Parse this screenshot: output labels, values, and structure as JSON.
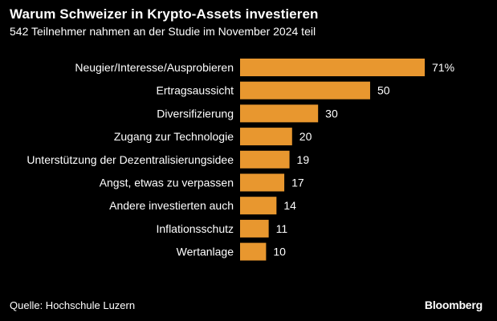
{
  "header": {
    "title": "Warum Schweizer in Krypto-Assets investieren",
    "subtitle": "542 Teilnehmer nahmen an der Studie im November 2024 teil"
  },
  "footer": {
    "source": "Quelle: Hochschule Luzern",
    "brand": "Bloomberg"
  },
  "colors": {
    "background": "#000000",
    "bar": "#e8972f",
    "text": "#ffffff"
  },
  "chart_data": {
    "type": "bar",
    "orientation": "horizontal",
    "title": "Warum Schweizer in Krypto-Assets investieren",
    "subtitle": "542 Teilnehmer nahmen an der Studie im November 2024 teil",
    "categories": [
      "Neugier/Interesse/Ausprobieren",
      "Ertragsaussicht",
      "Diversifizierung",
      "Zugang zur Technologie",
      "Unterstützung der Dezentralisierungsidee",
      "Angst, etwas zu verpassen",
      "Andere investierten auch",
      "Inflationsschutz",
      "Wertanlage"
    ],
    "values": [
      71,
      50,
      30,
      20,
      19,
      17,
      14,
      11,
      10
    ],
    "value_labels": [
      "71%",
      "50",
      "30",
      "20",
      "19",
      "17",
      "14",
      "11",
      "10"
    ],
    "unit": "%",
    "xlim": [
      0,
      71
    ],
    "grid": false,
    "legend": "none"
  }
}
